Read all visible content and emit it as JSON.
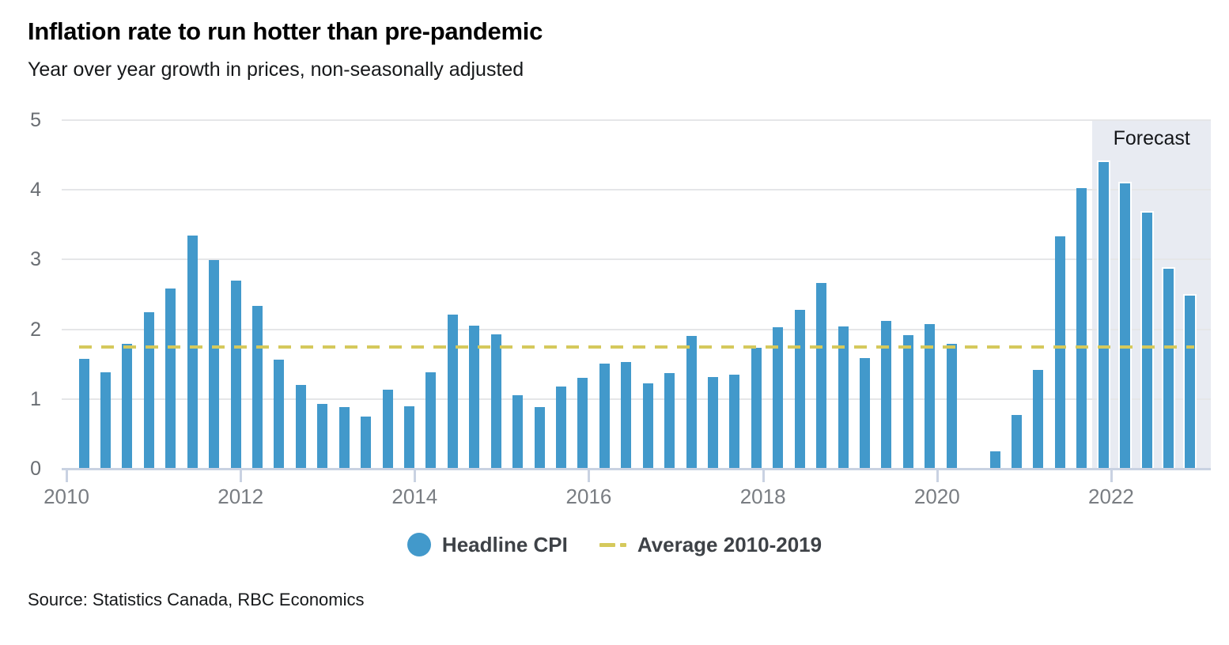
{
  "header": {
    "title": "Inflation rate to run hotter than pre-pandemic",
    "subtitle": "Year over year growth in prices, non-seasonally adjusted"
  },
  "legend": {
    "items": [
      {
        "label": "Headline CPI",
        "marker": "circle"
      },
      {
        "label": "Average 2010-2019",
        "marker": "dashed-line"
      }
    ]
  },
  "source": "Source: Statistics Canada, RBC Economics",
  "colors": {
    "bar": "#4299cb",
    "avg_line": "#d5c95c",
    "forecast_bg": "#e8ebf2",
    "gridline": "#e5e6e8",
    "axis": "#c9d2e2",
    "y_tick_label": "#696d72",
    "x_tick_label": "#797d82",
    "forecast_label": "#141619",
    "legend_text": "#3e4247"
  },
  "chart_data": {
    "type": "bar",
    "title": "Inflation rate to run hotter than pre-pandemic",
    "subtitle": "Year over year growth in prices, non-seasonally adjusted",
    "ylabel": "",
    "xlabel": "",
    "ylim": [
      0,
      5
    ],
    "yticks": [
      0,
      1,
      2,
      3,
      4,
      5
    ],
    "xtick_years": [
      2010,
      2012,
      2014,
      2016,
      2018,
      2020,
      2022
    ],
    "grid": true,
    "legend_position": "bottom",
    "categories": [
      "2010 Q1",
      "2010 Q2",
      "2010 Q3",
      "2010 Q4",
      "2011 Q1",
      "2011 Q2",
      "2011 Q3",
      "2011 Q4",
      "2012 Q1",
      "2012 Q2",
      "2012 Q3",
      "2012 Q4",
      "2013 Q1",
      "2013 Q2",
      "2013 Q3",
      "2013 Q4",
      "2014 Q1",
      "2014 Q2",
      "2014 Q3",
      "2014 Q4",
      "2015 Q1",
      "2015 Q2",
      "2015 Q3",
      "2015 Q4",
      "2016 Q1",
      "2016 Q2",
      "2016 Q3",
      "2016 Q4",
      "2017 Q1",
      "2017 Q2",
      "2017 Q3",
      "2017 Q4",
      "2018 Q1",
      "2018 Q2",
      "2018 Q3",
      "2018 Q4",
      "2019 Q1",
      "2019 Q2",
      "2019 Q3",
      "2019 Q4",
      "2020 Q1",
      "2020 Q2",
      "2020 Q3",
      "2020 Q4",
      "2021 Q1",
      "2021 Q2",
      "2021 Q3",
      "2021 Q4",
      "2022 Q1",
      "2022 Q2",
      "2022 Q3",
      "2022 Q4"
    ],
    "series": [
      {
        "name": "Headline CPI",
        "type": "bar",
        "color": "#4299cb",
        "values": [
          1.58,
          1.38,
          1.79,
          2.25,
          2.58,
          3.35,
          2.99,
          2.7,
          2.33,
          1.56,
          1.2,
          0.93,
          0.88,
          0.75,
          1.13,
          0.9,
          1.38,
          2.21,
          2.05,
          1.93,
          1.05,
          0.88,
          1.18,
          1.3,
          1.51,
          1.53,
          1.22,
          1.37,
          1.9,
          1.31,
          1.35,
          1.74,
          2.03,
          2.28,
          2.66,
          2.04,
          1.59,
          2.12,
          1.92,
          2.08,
          1.79,
          0.0,
          0.25,
          0.77,
          1.42,
          3.33,
          4.03,
          4.4,
          4.09,
          3.67,
          2.87,
          2.48
        ]
      },
      {
        "name": "Average 2010-2019",
        "type": "dashed_line",
        "color": "#d5c95c",
        "value": 1.75
      }
    ],
    "forecast": {
      "label": "Forecast",
      "start_category": "2021 Q4",
      "start_index": 47
    }
  }
}
